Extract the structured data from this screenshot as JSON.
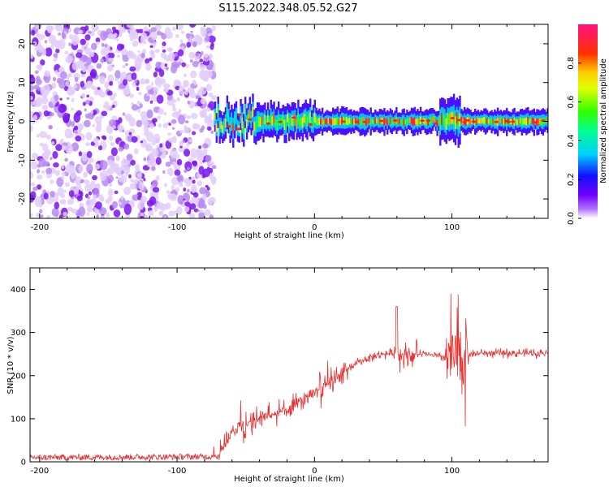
{
  "title": "S115.2022.348.05.52.G27",
  "chart_data": [
    {
      "type": "heatmap",
      "xlabel": "Height of straight line (km)",
      "ylabel": "Frequency (Hz)",
      "xlim": [
        -207,
        170
      ],
      "ylim": [
        -25,
        25
      ],
      "x_ticks": [
        -200,
        -100,
        0,
        100
      ],
      "y_ticks": [
        -20,
        -10,
        0,
        10,
        20
      ],
      "colorbar": {
        "label": "Normalized spectral amplitude",
        "range": [
          0.0,
          1.0
        ],
        "ticks": [
          "0.0",
          "0.2",
          "0.4",
          "0.6",
          "0.8"
        ],
        "colormap": "rainbow (purple-blue-cyan-green-yellow-red-pink)"
      },
      "features": {
        "noise_region_x": [
          -207,
          -73
        ],
        "signal_start_x": -73,
        "signal_frequency_hz": 0
      }
    },
    {
      "type": "line",
      "xlabel": "Height of straight line (km)",
      "ylabel": "SNR (10 * v/v)",
      "xlim": [
        -207,
        170
      ],
      "ylim": [
        0,
        450
      ],
      "x_ticks": [
        -200,
        -100,
        0,
        100
      ],
      "y_ticks": [
        0,
        100,
        200,
        300,
        400
      ],
      "series": [
        {
          "color": "#e83232",
          "profile": [
            [
              -207,
              10
            ],
            [
              -75,
              12
            ],
            [
              -70,
              15
            ],
            [
              -60,
              70
            ],
            [
              -50,
              90
            ],
            [
              -40,
              100
            ],
            [
              -30,
              110
            ],
            [
              -20,
              120
            ],
            [
              -10,
              140
            ],
            [
              0,
              160
            ],
            [
              10,
              180
            ],
            [
              20,
              205
            ],
            [
              30,
              228
            ],
            [
              40,
              242
            ],
            [
              50,
              250
            ],
            [
              60,
              252
            ],
            [
              65,
              248
            ],
            [
              80,
              250
            ],
            [
              90,
              245
            ],
            [
              100,
              240
            ],
            [
              110,
              250
            ],
            [
              120,
              252
            ],
            [
              140,
              252
            ],
            [
              170,
              252
            ]
          ]
        }
      ]
    }
  ]
}
